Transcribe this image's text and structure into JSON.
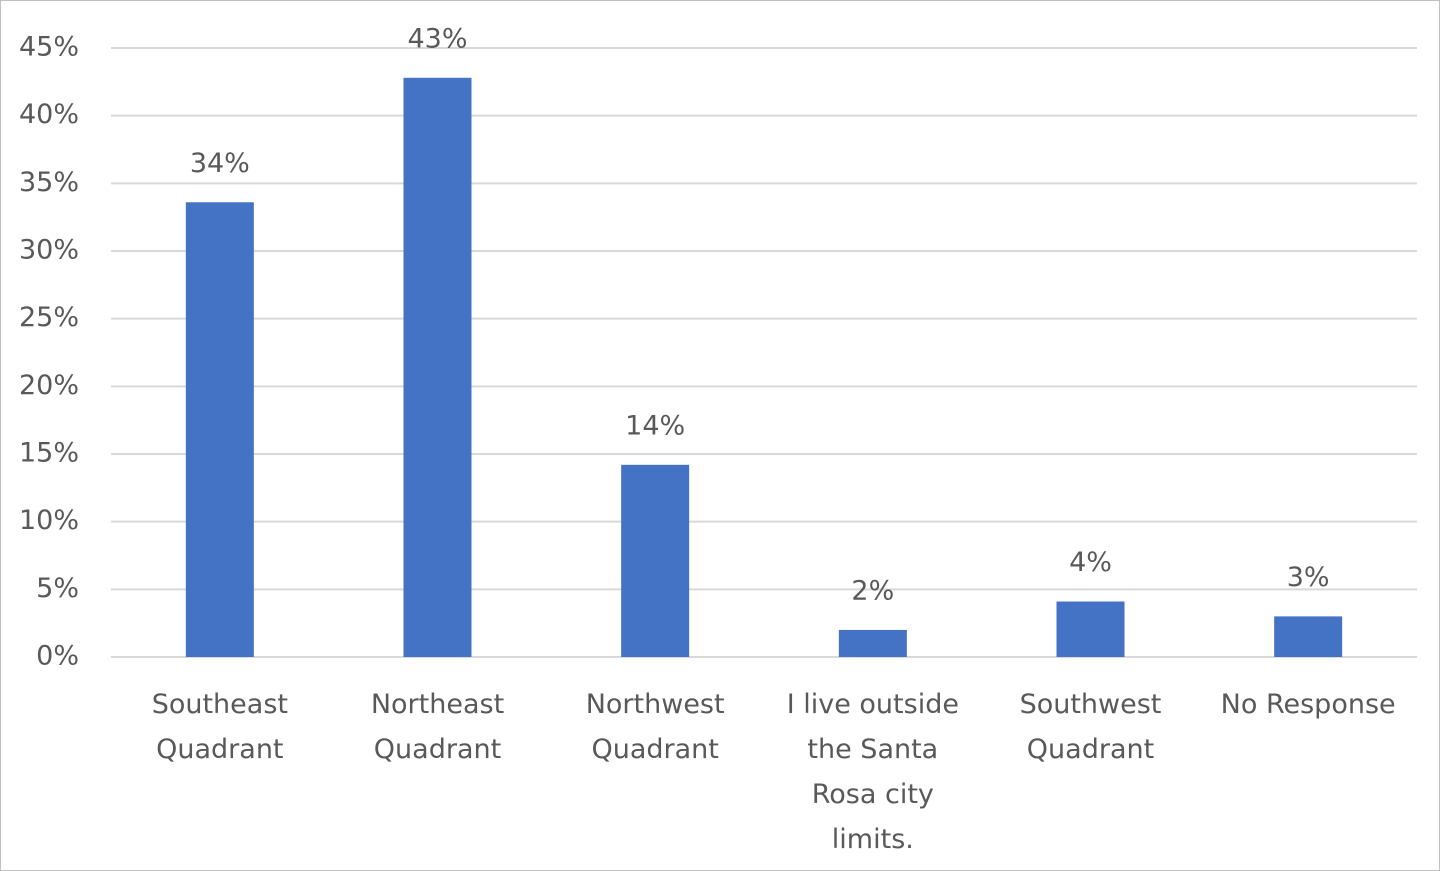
{
  "chart_data": {
    "type": "bar",
    "categories": [
      "Southeast Quadrant",
      "Northeast Quadrant",
      "Northwest Quadrant",
      "I live outside the Santa Rosa city limits.",
      "Southwest Quadrant",
      "No Response"
    ],
    "values": [
      33.6,
      42.8,
      14.2,
      2,
      4.1,
      3
    ],
    "value_labels": [
      "34%",
      "43%",
      "14%",
      "2%",
      "4%",
      "3%"
    ],
    "color": "#4472c4",
    "ylim": [
      0,
      45
    ],
    "yticks": [
      {
        "value": 0,
        "label": "0%"
      },
      {
        "value": 5,
        "label": "5%"
      },
      {
        "value": 10,
        "label": "10%"
      },
      {
        "value": 15,
        "label": "15%"
      },
      {
        "value": 20,
        "label": "20%"
      },
      {
        "value": 25,
        "label": "25%"
      },
      {
        "value": 30,
        "label": "30%"
      },
      {
        "value": 35,
        "label": "35%"
      },
      {
        "value": 40,
        "label": "40%"
      },
      {
        "value": 45,
        "label": "45%"
      }
    ],
    "grid": true
  }
}
